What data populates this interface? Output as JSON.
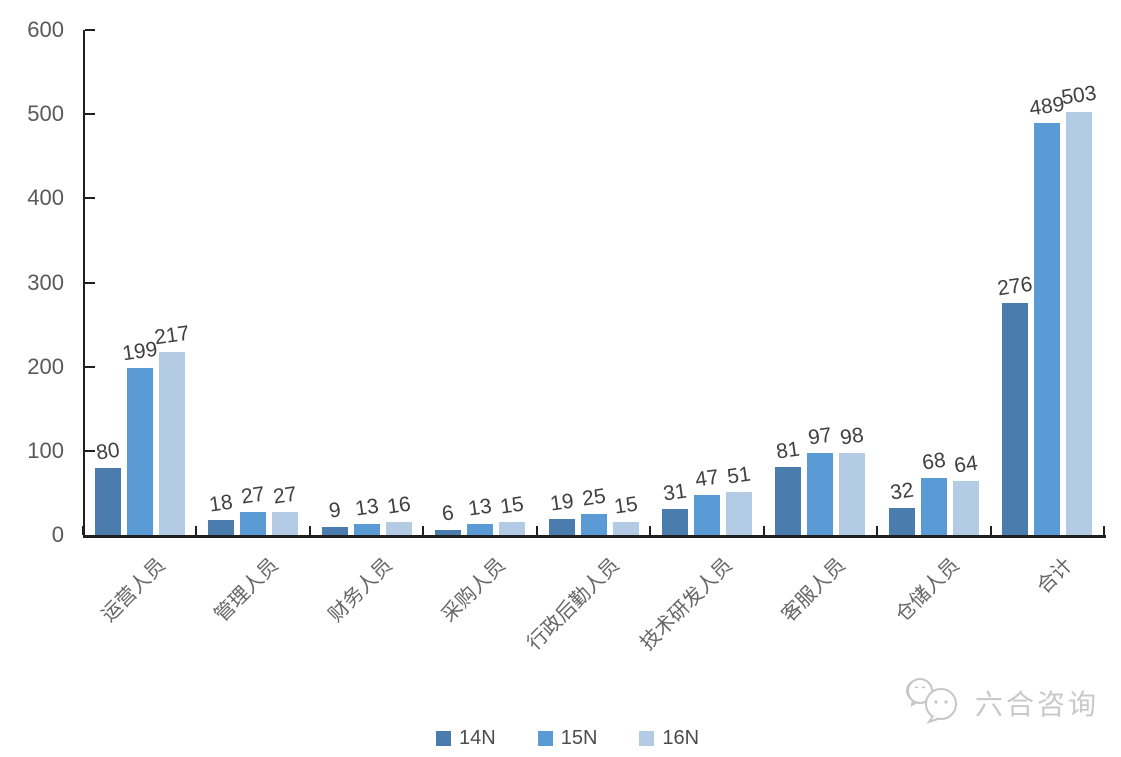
{
  "chart_data": {
    "type": "bar",
    "title": "",
    "xlabel": "",
    "ylabel": "",
    "categories": [
      "运营人员",
      "管理人员",
      "财务人员",
      "采购人员",
      "行政后勤人员",
      "技术研发人员",
      "客服人员",
      "仓储人员",
      "合计"
    ],
    "series": [
      {
        "name": "14N",
        "color": "#4A7CAE",
        "values": [
          80,
          18,
          9,
          6,
          19,
          31,
          81,
          32,
          276
        ]
      },
      {
        "name": "15N",
        "color": "#5B9BD5",
        "values": [
          199,
          27,
          13,
          13,
          25,
          47,
          97,
          68,
          489
        ]
      },
      {
        "name": "16N",
        "color": "#B4CBE6",
        "values": [
          217,
          27,
          16,
          15,
          15,
          51,
          98,
          64,
          503
        ]
      }
    ],
    "ylim": [
      0,
      600
    ],
    "yticks": [
      0,
      100,
      200,
      300,
      400,
      500,
      600
    ],
    "grid": false,
    "legend_position": "bottom",
    "bar_labels_shown": true
  },
  "watermark": {
    "text": "六合咨询",
    "icon": "wechat-icon"
  },
  "colors": {
    "axis": "#1f1f1f",
    "value_label": "#404040",
    "axis_tick_label": "#595959",
    "category_label": "#666666",
    "watermark": "#c9c9c9"
  }
}
